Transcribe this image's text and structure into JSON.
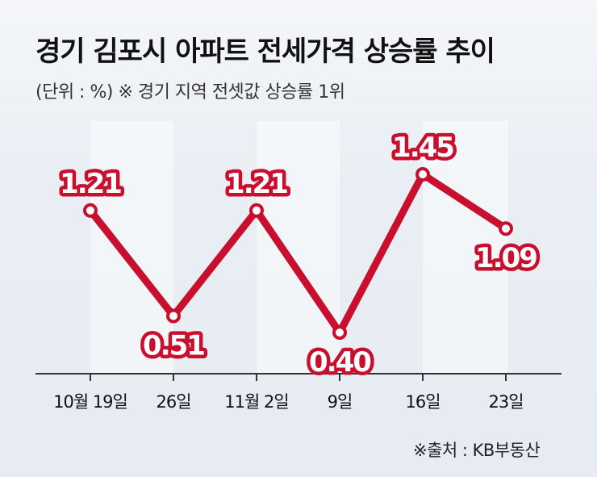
{
  "title": "경기 김포시 아파트 전세가격 상승률 추이",
  "subtitle": "(단위 : %)  ※ 경기 지역 전셋값 상승률 1위",
  "source": "※출처 : KB부동산",
  "colors": {
    "line": "#c8102e",
    "point_fill": "#ffffff",
    "axis": "#333333"
  },
  "chart_data": {
    "type": "line",
    "title": "경기 김포시 아파트 전세가격 상승률 추이",
    "unit": "%",
    "categories": [
      "10월 19일",
      "26일",
      "11월 2일",
      "9일",
      "16일",
      "23일"
    ],
    "values": [
      1.21,
      0.51,
      1.21,
      0.4,
      1.45,
      1.09
    ],
    "data_labels": [
      "1.21",
      "0.51",
      "1.21",
      "0.40",
      "1.45",
      "1.09"
    ],
    "label_position": [
      "above",
      "below",
      "above",
      "below",
      "above",
      "below"
    ],
    "ylim": [
      0,
      1.6
    ],
    "grid": false,
    "legend": "none"
  }
}
